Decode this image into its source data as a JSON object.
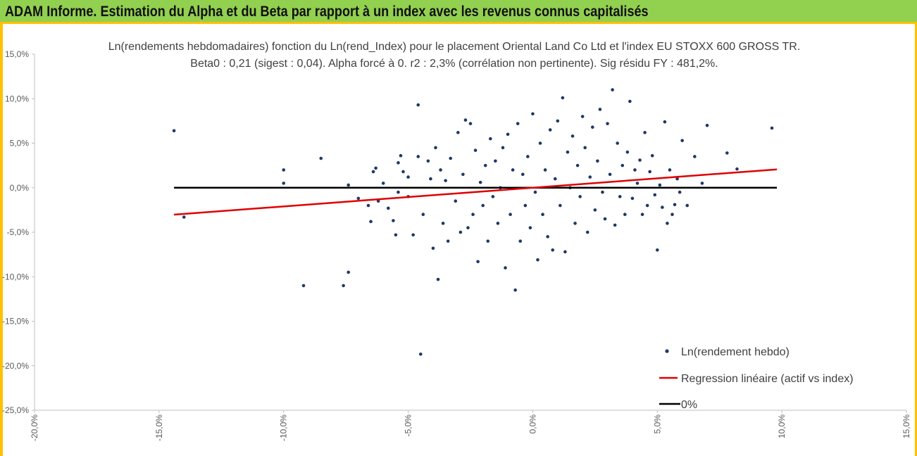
{
  "banner": {
    "title": "ADAM Informe. Estimation du Alpha et du Beta par rapport à un index avec les revenus connus capitalisés"
  },
  "colors": {
    "banner_bg": "#92d050",
    "banner_border": "#ffc000",
    "points": "#1f3864",
    "regression": "#e00000",
    "zero_line": "#000000"
  },
  "chart_data": {
    "type": "scatter",
    "title": "Ln(rendements hebdomadaires) fonction du Ln(rend_Index) pour le placement Oriental Land Co Ltd et l'index EU STOXX 600 GROSS TR.",
    "subtitle": "Beta0 : 0,21  (sigest : 0,04).  Alpha forcé à 0. r2 : 2,3% (corrélation non pertinente). Sig résidu FY : 481,2%.",
    "xlim": [
      -0.2,
      0.15
    ],
    "ylim": [
      -0.25,
      0.15
    ],
    "x_ticks": [
      -0.2,
      -0.15,
      -0.1,
      -0.05,
      0.0,
      0.05,
      0.1,
      0.15
    ],
    "x_tick_labels": [
      "-20,0%",
      "-15,0%",
      "-10,0%",
      "-5,0%",
      "0,0%",
      "5,0%",
      "10,0%",
      "15,0%"
    ],
    "y_ticks": [
      0.15,
      0.1,
      0.05,
      0.0,
      -0.05,
      -0.1,
      -0.15,
      -0.2,
      -0.25
    ],
    "y_tick_labels": [
      "15,0%",
      "10,0%",
      "5,0%",
      "0,0%",
      "-5,0%",
      "-10,0%",
      "-15,0%",
      "-20,0%",
      "-25,0%"
    ],
    "legend_position": "bottom-right",
    "series": [
      {
        "name": "Ln(rendement hebdo)",
        "kind": "scatter",
        "points": [
          [
            -0.144,
            0.064
          ],
          [
            -0.14,
            -0.033
          ],
          [
            -0.1,
            0.02
          ],
          [
            -0.1,
            0.005
          ],
          [
            -0.092,
            -0.11
          ],
          [
            -0.085,
            0.033
          ],
          [
            -0.076,
            -0.11
          ],
          [
            -0.074,
            -0.095
          ],
          [
            -0.074,
            0.003
          ],
          [
            -0.07,
            -0.012
          ],
          [
            -0.066,
            -0.02
          ],
          [
            -0.065,
            -0.038
          ],
          [
            -0.064,
            0.018
          ],
          [
            -0.063,
            0.022
          ],
          [
            -0.062,
            -0.015
          ],
          [
            -0.06,
            0.005
          ],
          [
            -0.058,
            -0.023
          ],
          [
            -0.056,
            -0.037
          ],
          [
            -0.055,
            -0.053
          ],
          [
            -0.054,
            0.028
          ],
          [
            -0.054,
            -0.005
          ],
          [
            -0.053,
            0.036
          ],
          [
            -0.052,
            0.018
          ],
          [
            -0.05,
            -0.01
          ],
          [
            -0.05,
            0.012
          ],
          [
            -0.048,
            -0.053
          ],
          [
            -0.046,
            0.093
          ],
          [
            -0.046,
            0.035
          ],
          [
            -0.045,
            -0.187
          ],
          [
            -0.044,
            -0.03
          ],
          [
            -0.042,
            0.03
          ],
          [
            -0.041,
            0.01
          ],
          [
            -0.04,
            -0.068
          ],
          [
            -0.039,
            0.045
          ],
          [
            -0.038,
            -0.103
          ],
          [
            -0.037,
            0.02
          ],
          [
            -0.036,
            -0.04
          ],
          [
            -0.035,
            0.008
          ],
          [
            -0.034,
            -0.06
          ],
          [
            -0.033,
            0.033
          ],
          [
            -0.031,
            -0.015
          ],
          [
            -0.03,
            0.062
          ],
          [
            -0.029,
            -0.05
          ],
          [
            -0.028,
            0.015
          ],
          [
            -0.027,
            0.076
          ],
          [
            -0.026,
            -0.045
          ],
          [
            -0.025,
            0.072
          ],
          [
            -0.024,
            -0.03
          ],
          [
            -0.023,
            0.042
          ],
          [
            -0.022,
            -0.083
          ],
          [
            -0.021,
            0.006
          ],
          [
            -0.02,
            -0.02
          ],
          [
            -0.019,
            0.025
          ],
          [
            -0.018,
            -0.06
          ],
          [
            -0.017,
            0.055
          ],
          [
            -0.016,
            -0.01
          ],
          [
            -0.015,
            0.03
          ],
          [
            -0.014,
            -0.04
          ],
          [
            -0.013,
            0.0
          ],
          [
            -0.012,
            0.045
          ],
          [
            -0.011,
            -0.09
          ],
          [
            -0.01,
            0.06
          ],
          [
            -0.009,
            -0.03
          ],
          [
            -0.008,
            0.02
          ],
          [
            -0.007,
            -0.115
          ],
          [
            -0.006,
            0.072
          ],
          [
            -0.005,
            -0.06
          ],
          [
            -0.004,
            0.015
          ],
          [
            -0.003,
            -0.02
          ],
          [
            -0.002,
            0.035
          ],
          [
            -0.001,
            -0.045
          ],
          [
            0.0,
            0.083
          ],
          [
            0.001,
            -0.005
          ],
          [
            0.002,
            -0.081
          ],
          [
            0.003,
            0.05
          ],
          [
            0.004,
            -0.03
          ],
          [
            0.005,
            0.02
          ],
          [
            0.006,
            -0.055
          ],
          [
            0.007,
            0.065
          ],
          [
            0.008,
            -0.07
          ],
          [
            0.009,
            0.01
          ],
          [
            0.01,
            0.075
          ],
          [
            0.011,
            -0.02
          ],
          [
            0.012,
            0.101
          ],
          [
            0.013,
            -0.072
          ],
          [
            0.014,
            0.04
          ],
          [
            0.015,
            0.0
          ],
          [
            0.016,
            0.058
          ],
          [
            0.017,
            -0.04
          ],
          [
            0.018,
            0.025
          ],
          [
            0.019,
            -0.01
          ],
          [
            0.02,
            0.08
          ],
          [
            0.021,
            0.045
          ],
          [
            0.022,
            -0.05
          ],
          [
            0.023,
            0.012
          ],
          [
            0.024,
            0.068
          ],
          [
            0.025,
            -0.025
          ],
          [
            0.026,
            0.03
          ],
          [
            0.027,
            0.088
          ],
          [
            0.028,
            -0.005
          ],
          [
            0.029,
            -0.035
          ],
          [
            0.03,
            0.072
          ],
          [
            0.031,
            0.015
          ],
          [
            0.032,
            0.11
          ],
          [
            0.033,
            -0.042
          ],
          [
            0.034,
            0.05
          ],
          [
            0.035,
            -0.01
          ],
          [
            0.036,
            0.025
          ],
          [
            0.037,
            -0.03
          ],
          [
            0.038,
            0.04
          ],
          [
            0.039,
            0.097
          ],
          [
            0.04,
            -0.012
          ],
          [
            0.041,
            0.02
          ],
          [
            0.042,
            0.005
          ],
          [
            0.043,
            0.031
          ],
          [
            0.044,
            -0.03
          ],
          [
            0.045,
            0.062
          ],
          [
            0.046,
            -0.02
          ],
          [
            0.047,
            0.018
          ],
          [
            0.048,
            0.036
          ],
          [
            0.049,
            -0.008
          ],
          [
            0.05,
            -0.07
          ],
          [
            0.051,
            0.003
          ],
          [
            0.052,
            -0.022
          ],
          [
            0.053,
            0.074
          ],
          [
            0.054,
            -0.04
          ],
          [
            0.055,
            0.02
          ],
          [
            0.056,
            -0.03
          ],
          [
            0.057,
            -0.019
          ],
          [
            0.058,
            0.01
          ],
          [
            0.059,
            -0.005
          ],
          [
            0.06,
            0.053
          ],
          [
            0.062,
            -0.02
          ],
          [
            0.065,
            0.035
          ],
          [
            0.068,
            0.005
          ],
          [
            0.07,
            0.07
          ],
          [
            0.078,
            0.039
          ],
          [
            0.082,
            0.021
          ],
          [
            0.096,
            0.067
          ]
        ]
      },
      {
        "name": "Regression linéaire (actif vs index)",
        "kind": "line",
        "slope": 0.21,
        "intercept": 0.0,
        "x_range": [
          -0.144,
          0.098
        ]
      },
      {
        "name": "0%",
        "kind": "line",
        "slope": 0.0,
        "intercept": 0.0,
        "x_range": [
          -0.144,
          0.098
        ]
      }
    ]
  }
}
